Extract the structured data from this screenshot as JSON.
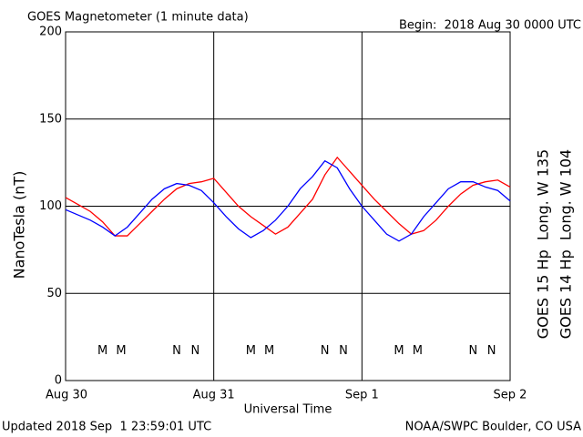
{
  "chart_data": {
    "type": "line",
    "title": "GOES Magnetometer (1 minute data)",
    "subtitle": "Begin:  2018 Aug 30 0000 UTC",
    "xlabel": "Universal Time",
    "ylabel": "NanoTesla (nT)",
    "footer_left": "Updated 2018 Sep  1 23:59:01 UTC",
    "footer_right": "NOAA/SWPC Boulder, CO USA",
    "x": [
      0,
      2,
      4,
      6,
      8,
      10,
      12,
      14,
      16,
      18,
      20,
      22,
      24,
      26,
      28,
      30,
      32,
      34,
      36,
      38,
      40,
      42,
      44,
      46,
      48,
      50,
      52,
      54,
      56,
      58,
      60,
      62,
      64,
      66,
      68,
      70,
      72
    ],
    "series": [
      {
        "name": "GOES 15 Hp  Long. W 135",
        "color": "#ff0000",
        "values": [
          105,
          101,
          97,
          91,
          83,
          83,
          90,
          97,
          104,
          110,
          113,
          114,
          116,
          108,
          100,
          94,
          89,
          84,
          88,
          96,
          104,
          118,
          128,
          120,
          112,
          104,
          97,
          90,
          84,
          86,
          92,
          100,
          107,
          112,
          114,
          115,
          111
        ]
      },
      {
        "name": "GOES 14 Hp  Long. W 104",
        "color": "#0000ff",
        "values": [
          98,
          95,
          92,
          88,
          83,
          88,
          96,
          104,
          110,
          113,
          112,
          109,
          102,
          94,
          87,
          82,
          86,
          92,
          100,
          110,
          117,
          126,
          122,
          110,
          100,
          92,
          84,
          80,
          84,
          94,
          102,
          110,
          114,
          114,
          111,
          109,
          103
        ]
      }
    ],
    "annotations": [
      {
        "text": "M",
        "x": 6,
        "y": 17,
        "color": "#0000ff"
      },
      {
        "text": "M",
        "x": 9,
        "y": 17,
        "color": "#ff0000"
      },
      {
        "text": "N",
        "x": 18,
        "y": 17,
        "color": "#0000ff"
      },
      {
        "text": "N",
        "x": 21,
        "y": 17,
        "color": "#ff0000"
      },
      {
        "text": "M",
        "x": 30,
        "y": 17,
        "color": "#0000ff"
      },
      {
        "text": "M",
        "x": 33,
        "y": 17,
        "color": "#ff0000"
      },
      {
        "text": "N",
        "x": 42,
        "y": 17,
        "color": "#0000ff"
      },
      {
        "text": "N",
        "x": 45,
        "y": 17,
        "color": "#ff0000"
      },
      {
        "text": "M",
        "x": 54,
        "y": 17,
        "color": "#0000ff"
      },
      {
        "text": "M",
        "x": 57,
        "y": 17,
        "color": "#ff0000"
      },
      {
        "text": "N",
        "x": 66,
        "y": 17,
        "color": "#0000ff"
      },
      {
        "text": "N",
        "x": 69,
        "y": 17,
        "color": "#ff0000"
      }
    ],
    "xlim": [
      0,
      72
    ],
    "xticks": [
      {
        "value": 0,
        "label": "Aug 30"
      },
      {
        "value": 24,
        "label": "Aug 31"
      },
      {
        "value": 48,
        "label": "Sep 1"
      },
      {
        "value": 72,
        "label": "Sep 2"
      }
    ],
    "ylim": [
      0,
      200
    ],
    "yticks": [
      0,
      50,
      100,
      150,
      200
    ],
    "grid": true
  }
}
